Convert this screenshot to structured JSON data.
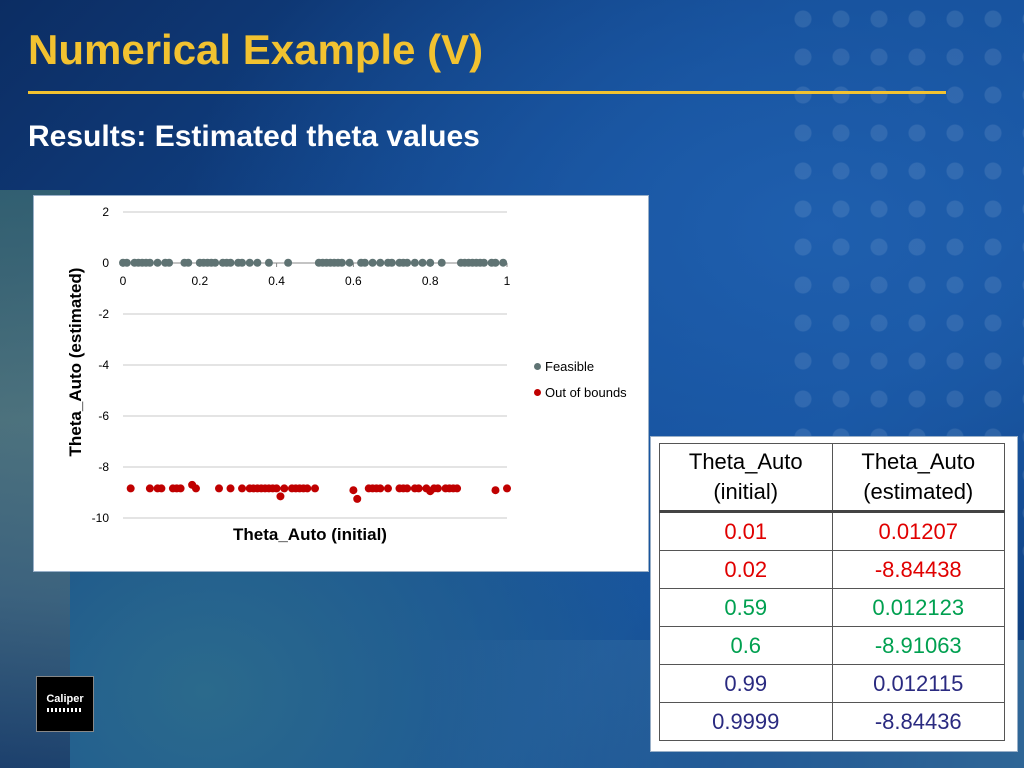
{
  "slide": {
    "title": "Numerical Example (V)",
    "subtitle": "Results: Estimated theta values"
  },
  "colors": {
    "title": "#f2c230",
    "feasible": "#5f7373",
    "out_of_bounds": "#c00000",
    "red_text": "#e00000",
    "green_text": "#00a050",
    "navy_text": "#2a2a80"
  },
  "chart_data": {
    "type": "scatter",
    "xlabel": "Theta_Auto (initial)",
    "ylabel": "Theta_Auto (estimated)",
    "xlim": [
      0,
      1
    ],
    "ylim": [
      -10,
      2
    ],
    "x_ticks": [
      "0",
      "0.2",
      "0.4",
      "0.6",
      "0.8",
      "1"
    ],
    "y_ticks": [
      "2",
      "0",
      "-2",
      "-4",
      "-6",
      "-8",
      "-10"
    ],
    "grid": "horizontal",
    "legend_placement": "right",
    "series": [
      {
        "name": "Feasible",
        "color": "#5f7373",
        "x": [
          0.0,
          0.01,
          0.03,
          0.04,
          0.05,
          0.06,
          0.07,
          0.09,
          0.11,
          0.12,
          0.16,
          0.17,
          0.2,
          0.21,
          0.22,
          0.23,
          0.24,
          0.26,
          0.27,
          0.28,
          0.3,
          0.31,
          0.33,
          0.35,
          0.38,
          0.43,
          0.51,
          0.52,
          0.53,
          0.54,
          0.55,
          0.56,
          0.57,
          0.59,
          0.62,
          0.63,
          0.65,
          0.67,
          0.69,
          0.7,
          0.72,
          0.73,
          0.74,
          0.76,
          0.78,
          0.8,
          0.83,
          0.88,
          0.89,
          0.9,
          0.91,
          0.92,
          0.93,
          0.94,
          0.96,
          0.97,
          0.99
        ],
        "y": [
          0.01,
          0.01,
          0.01,
          0.01,
          0.01,
          0.01,
          0.01,
          0.01,
          0.01,
          0.01,
          0.01,
          0.01,
          0.01,
          0.01,
          0.01,
          0.01,
          0.01,
          0.01,
          0.01,
          0.01,
          0.01,
          0.01,
          0.01,
          0.01,
          0.01,
          0.01,
          0.01,
          0.01,
          0.01,
          0.01,
          0.01,
          0.01,
          0.01,
          0.012,
          0.01,
          0.01,
          0.01,
          0.01,
          0.01,
          0.01,
          0.01,
          0.01,
          0.01,
          0.01,
          0.01,
          0.01,
          0.01,
          0.01,
          0.01,
          0.01,
          0.01,
          0.01,
          0.01,
          0.01,
          0.01,
          0.01,
          0.012
        ]
      },
      {
        "name": "Out of bounds",
        "color": "#c00000",
        "x": [
          0.02,
          0.07,
          0.09,
          0.1,
          0.13,
          0.14,
          0.15,
          0.18,
          0.19,
          0.25,
          0.28,
          0.31,
          0.33,
          0.34,
          0.35,
          0.36,
          0.37,
          0.38,
          0.39,
          0.4,
          0.41,
          0.42,
          0.44,
          0.45,
          0.46,
          0.47,
          0.48,
          0.5,
          0.6,
          0.61,
          0.64,
          0.65,
          0.66,
          0.67,
          0.69,
          0.72,
          0.73,
          0.74,
          0.76,
          0.77,
          0.79,
          0.8,
          0.81,
          0.82,
          0.84,
          0.85,
          0.86,
          0.87,
          0.97,
          1.0
        ],
        "y": [
          -8.84,
          -8.84,
          -8.84,
          -8.84,
          -8.84,
          -8.84,
          -8.84,
          -8.7,
          -8.84,
          -8.84,
          -8.84,
          -8.84,
          -8.84,
          -8.84,
          -8.84,
          -8.84,
          -8.84,
          -8.84,
          -8.84,
          -8.84,
          -9.15,
          -8.84,
          -8.84,
          -8.84,
          -8.84,
          -8.84,
          -8.84,
          -8.84,
          -8.91,
          -9.25,
          -8.84,
          -8.84,
          -8.84,
          -8.84,
          -8.84,
          -8.84,
          -8.84,
          -8.84,
          -8.84,
          -8.84,
          -8.84,
          -8.95,
          -8.84,
          -8.84,
          -8.84,
          -8.84,
          -8.84,
          -8.84,
          -8.91,
          -8.84
        ]
      }
    ]
  },
  "table": {
    "headers": [
      {
        "line1": "Theta_Auto",
        "line2": "(initial)"
      },
      {
        "line1": "Theta_Auto",
        "line2": "(estimated)"
      }
    ],
    "rows": [
      {
        "initial": "0.01",
        "estimated": "0.01207",
        "color": "#e00000"
      },
      {
        "initial": "0.02",
        "estimated": "-8.84438",
        "color": "#e00000"
      },
      {
        "initial": "0.59",
        "estimated": "0.012123",
        "color": "#00a050"
      },
      {
        "initial": "0.6",
        "estimated": "-8.91063",
        "color": "#00a050"
      },
      {
        "initial": "0.99",
        "estimated": "0.012115",
        "color": "#2a2a80"
      },
      {
        "initial": "0.9999",
        "estimated": "-8.84436",
        "color": "#2a2a80"
      }
    ]
  },
  "logo": {
    "text": "Caliper"
  }
}
